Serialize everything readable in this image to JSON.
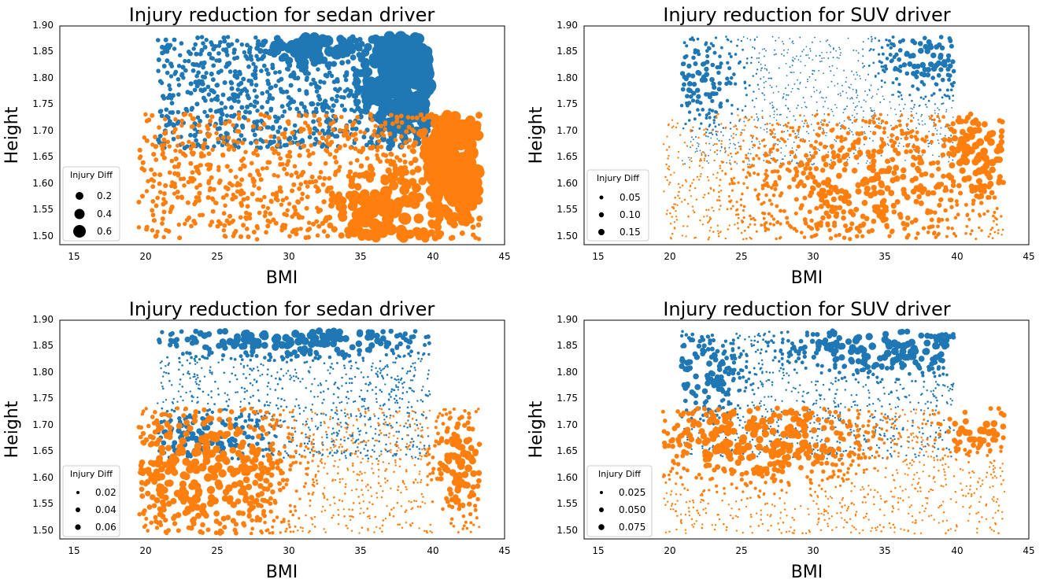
{
  "figure": {
    "colors": {
      "series_a": "#1f77b4",
      "series_b": "#ff7f0e",
      "axes": "#000000"
    }
  },
  "chart_data": [
    {
      "type": "scatter",
      "title": "Injury reduction for sedan driver",
      "xlabel": "BMI",
      "ylabel": "Height",
      "xlim": [
        14,
        45
      ],
      "ylim": [
        1.49,
        1.9
      ],
      "xticks": [
        "15",
        "20",
        "25",
        "30",
        "35",
        "40",
        "45"
      ],
      "xtick_values": [
        15,
        20,
        25,
        30,
        35,
        40,
        45
      ],
      "yticks": [
        "1.50",
        "1.55",
        "1.60",
        "1.65",
        "1.70",
        "1.75",
        "1.80",
        "1.85",
        "1.90"
      ],
      "ytick_values": [
        1.5,
        1.55,
        1.6,
        1.65,
        1.7,
        1.75,
        1.8,
        1.85,
        1.9
      ],
      "grid": false,
      "legend": {
        "title": "Injury Diff",
        "placement": "lower-left",
        "entries": [
          {
            "label": "0.2",
            "value": 0.2
          },
          {
            "label": "0.4",
            "value": 0.4
          },
          {
            "label": "0.6",
            "value": 0.6
          }
        ]
      },
      "series": [
        {
          "name": "blue",
          "color": "#1f77b4",
          "x_range": [
            20.8,
            39.8
          ],
          "y_range": [
            1.67,
            1.88
          ],
          "size_range": [
            0.0,
            0.7
          ],
          "clusters": [
            {
              "x_center": 38.0,
              "y_center": 1.8,
              "x_spread": 1.6,
              "y_spread": 0.06,
              "size_peak": 0.7
            },
            {
              "x_center": 31.5,
              "y_center": 1.86,
              "x_spread": 2.0,
              "y_spread": 0.02,
              "size_peak": 0.3
            }
          ]
        },
        {
          "name": "orange",
          "color": "#ff7f0e",
          "x_range": [
            19.5,
            43.3
          ],
          "y_range": [
            1.5,
            1.735
          ],
          "size_range": [
            0.0,
            0.7
          ],
          "clusters": [
            {
              "x_center": 41.5,
              "y_center": 1.64,
              "x_spread": 1.3,
              "y_spread": 0.06,
              "size_peak": 0.7
            },
            {
              "x_center": 37.0,
              "y_center": 1.55,
              "x_spread": 2.5,
              "y_spread": 0.05,
              "size_peak": 0.3
            }
          ]
        }
      ]
    },
    {
      "type": "scatter",
      "title": "Injury reduction for SUV driver",
      "xlabel": "BMI",
      "ylabel": "Height",
      "xlim": [
        14,
        45
      ],
      "ylim": [
        1.49,
        1.9
      ],
      "xticks": [
        "15",
        "20",
        "25",
        "30",
        "35",
        "40",
        "45"
      ],
      "xtick_values": [
        15,
        20,
        25,
        30,
        35,
        40,
        45
      ],
      "yticks": [
        "1.50",
        "1.55",
        "1.60",
        "1.65",
        "1.70",
        "1.75",
        "1.80",
        "1.85",
        "1.90"
      ],
      "ytick_values": [
        1.5,
        1.55,
        1.6,
        1.65,
        1.7,
        1.75,
        1.8,
        1.85,
        1.9
      ],
      "grid": false,
      "legend": {
        "title": "Injury Diff",
        "placement": "lower-left",
        "entries": [
          {
            "label": "0.05",
            "value": 0.05
          },
          {
            "label": "0.10",
            "value": 0.1
          },
          {
            "label": "0.15",
            "value": 0.15
          }
        ]
      },
      "series": [
        {
          "name": "blue",
          "color": "#1f77b4",
          "x_range": [
            20.8,
            39.8
          ],
          "y_range": [
            1.64,
            1.88
          ],
          "size_range": [
            0.0,
            0.09
          ],
          "clusters": [
            {
              "x_center": 38.0,
              "y_center": 1.84,
              "x_spread": 2.0,
              "y_spread": 0.04,
              "size_peak": 0.09
            },
            {
              "x_center": 22.0,
              "y_center": 1.8,
              "x_spread": 2.0,
              "y_spread": 0.05,
              "size_peak": 0.07
            }
          ]
        },
        {
          "name": "orange",
          "color": "#ff7f0e",
          "x_range": [
            19.5,
            43.3
          ],
          "y_range": [
            1.5,
            1.735
          ],
          "size_range": [
            0.0,
            0.16
          ],
          "clusters": [
            {
              "x_center": 41.5,
              "y_center": 1.66,
              "x_spread": 1.8,
              "y_spread": 0.06,
              "size_peak": 0.16
            },
            {
              "x_center": 34.0,
              "y_center": 1.6,
              "x_spread": 5.0,
              "y_spread": 0.08,
              "size_peak": 0.1
            }
          ]
        }
      ]
    },
    {
      "type": "scatter",
      "title": "Injury reduction for sedan driver",
      "xlabel": "BMI",
      "ylabel": "Height",
      "xlim": [
        14,
        45
      ],
      "ylim": [
        1.49,
        1.9
      ],
      "xticks": [
        "15",
        "20",
        "25",
        "30",
        "35",
        "40",
        "45"
      ],
      "xtick_values": [
        15,
        20,
        25,
        30,
        35,
        40,
        45
      ],
      "yticks": [
        "1.50",
        "1.55",
        "1.60",
        "1.65",
        "1.70",
        "1.75",
        "1.80",
        "1.85",
        "1.90"
      ],
      "ytick_values": [
        1.5,
        1.55,
        1.6,
        1.65,
        1.7,
        1.75,
        1.8,
        1.85,
        1.9
      ],
      "grid": false,
      "legend": {
        "title": "Injury Diff",
        "placement": "lower-left",
        "entries": [
          {
            "label": "0.02",
            "value": 0.02
          },
          {
            "label": "0.04",
            "value": 0.04
          },
          {
            "label": "0.06",
            "value": 0.06
          }
        ]
      },
      "series": [
        {
          "name": "blue",
          "color": "#1f77b4",
          "x_range": [
            20.8,
            39.8
          ],
          "y_range": [
            1.64,
            1.88
          ],
          "size_range": [
            0.0,
            0.07
          ],
          "clusters": [
            {
              "x_center": 30.0,
              "y_center": 1.865,
              "x_spread": 6.0,
              "y_spread": 0.02,
              "size_peak": 0.07
            },
            {
              "x_center": 24.0,
              "y_center": 1.68,
              "x_spread": 3.0,
              "y_spread": 0.03,
              "size_peak": 0.04
            }
          ]
        },
        {
          "name": "orange",
          "color": "#ff7f0e",
          "x_range": [
            19.5,
            43.3
          ],
          "y_range": [
            1.5,
            1.735
          ],
          "size_range": [
            0.0,
            0.07
          ],
          "clusters": [
            {
              "x_center": 24.0,
              "y_center": 1.62,
              "x_spread": 3.5,
              "y_spread": 0.08,
              "size_peak": 0.07
            },
            {
              "x_center": 42.0,
              "y_center": 1.63,
              "x_spread": 1.2,
              "y_spread": 0.06,
              "size_peak": 0.06
            }
          ]
        }
      ]
    },
    {
      "type": "scatter",
      "title": "Injury reduction for SUV driver",
      "xlabel": "BMI",
      "ylabel": "Height",
      "xlim": [
        14,
        45
      ],
      "ylim": [
        1.49,
        1.9
      ],
      "xticks": [
        "15",
        "20",
        "25",
        "30",
        "35",
        "40",
        "45"
      ],
      "xtick_values": [
        15,
        20,
        25,
        30,
        35,
        40,
        45
      ],
      "yticks": [
        "1.50",
        "1.55",
        "1.60",
        "1.65",
        "1.70",
        "1.75",
        "1.80",
        "1.85",
        "1.90"
      ],
      "ytick_values": [
        1.5,
        1.55,
        1.6,
        1.65,
        1.7,
        1.75,
        1.8,
        1.85,
        1.9
      ],
      "grid": false,
      "legend": {
        "title": "Injury Diff",
        "placement": "lower-left",
        "entries": [
          {
            "label": "0.025",
            "value": 0.025
          },
          {
            "label": "0.050",
            "value": 0.05
          },
          {
            "label": "0.075",
            "value": 0.075
          }
        ]
      },
      "series": [
        {
          "name": "blue",
          "color": "#1f77b4",
          "x_range": [
            20.8,
            39.8
          ],
          "y_range": [
            1.64,
            1.88
          ],
          "size_range": [
            0.0,
            0.08
          ],
          "clusters": [
            {
              "x_center": 35.0,
              "y_center": 1.85,
              "x_spread": 4.0,
              "y_spread": 0.03,
              "size_peak": 0.08
            },
            {
              "x_center": 22.0,
              "y_center": 1.8,
              "x_spread": 2.0,
              "y_spread": 0.05,
              "size_peak": 0.05
            }
          ]
        },
        {
          "name": "orange",
          "color": "#ff7f0e",
          "x_range": [
            19.5,
            43.3
          ],
          "y_range": [
            1.5,
            1.735
          ],
          "size_range": [
            0.0,
            0.08
          ],
          "clusters": [
            {
              "x_center": 26.0,
              "y_center": 1.68,
              "x_spread": 4.5,
              "y_spread": 0.05,
              "size_peak": 0.08
            },
            {
              "x_center": 41.5,
              "y_center": 1.7,
              "x_spread": 1.8,
              "y_spread": 0.03,
              "size_peak": 0.07
            }
          ]
        }
      ]
    }
  ]
}
